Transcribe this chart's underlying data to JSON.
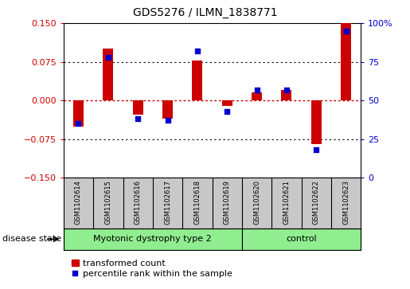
{
  "title": "GDS5276 / ILMN_1838771",
  "samples": [
    "GSM1102614",
    "GSM1102615",
    "GSM1102616",
    "GSM1102617",
    "GSM1102618",
    "GSM1102619",
    "GSM1102620",
    "GSM1102621",
    "GSM1102622",
    "GSM1102623"
  ],
  "group1_label": "Myotonic dystrophy type 2",
  "group1_count": 6,
  "group2_label": "control",
  "group2_count": 4,
  "group_color": "#90EE90",
  "transformed_count": [
    -0.05,
    0.1,
    -0.028,
    -0.035,
    0.077,
    -0.01,
    0.015,
    0.02,
    -0.085,
    0.15
  ],
  "percentile_rank": [
    35,
    78,
    38,
    37,
    82,
    43,
    57,
    57,
    18,
    95
  ],
  "ylim_left": [
    -0.15,
    0.15
  ],
  "ylim_right": [
    0,
    100
  ],
  "yticks_left": [
    -0.15,
    -0.075,
    0,
    0.075,
    0.15
  ],
  "yticks_right": [
    0,
    25,
    50,
    75,
    100
  ],
  "bar_color": "#CC0000",
  "dot_color": "#0000CC",
  "left_tick_color": "#CC0000",
  "right_tick_color": "#0000CC",
  "disease_state_label": "disease state",
  "legend_bar_label": "transformed count",
  "legend_dot_label": "percentile rank within the sample",
  "figsize": [
    5.15,
    3.63
  ],
  "dpi": 100
}
